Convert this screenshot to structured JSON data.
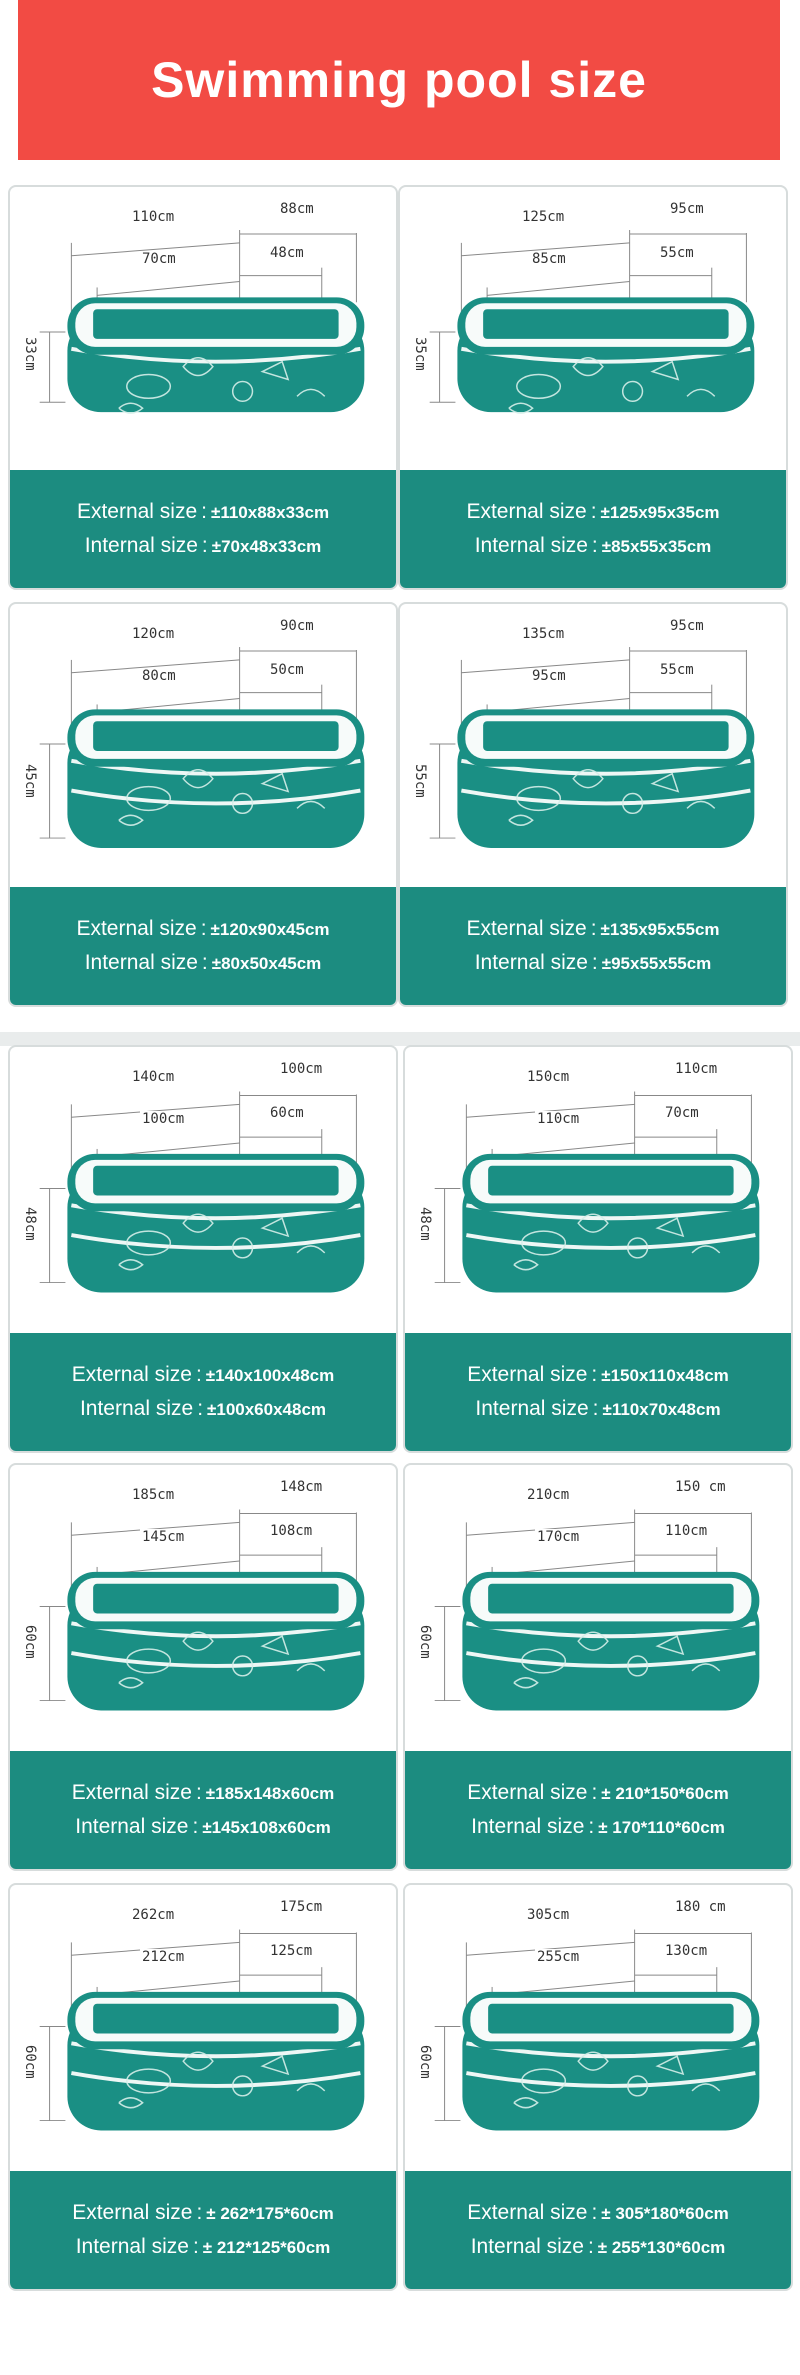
{
  "title": "Swimming pool size",
  "colors": {
    "banner": "#f24b44",
    "teal": "#1c8c80",
    "pool_water": "#1a8f84",
    "pool_white": "#f7fbfa"
  },
  "pools": [
    {
      "length": "110cm",
      "width": "88cm",
      "in_length": "70cm",
      "in_width": "48cm",
      "height": "33cm",
      "external_label": "External size",
      "internal_label": "Internal size",
      "external": "±110x88x33cm",
      "internal": "±70x48x33cm"
    },
    {
      "length": "125cm",
      "width": "95cm",
      "in_length": "85cm",
      "in_width": "55cm",
      "height": "35cm",
      "external_label": "External size",
      "internal_label": "Internal size",
      "external": "±125x95x35cm",
      "internal": "±85x55x35cm"
    },
    {
      "length": "120cm",
      "width": "90cm",
      "in_length": "80cm",
      "in_width": "50cm",
      "height": "45cm",
      "external_label": "External size",
      "internal_label": "Internal size",
      "external": "±120x90x45cm",
      "internal": "±80x50x45cm"
    },
    {
      "length": "135cm",
      "width": "95cm",
      "in_length": "95cm",
      "in_width": "55cm",
      "height": "55cm",
      "external_label": "External size",
      "internal_label": "Internal size",
      "external": "±135x95x55cm",
      "internal": "±95x55x55cm"
    },
    {
      "length": "140cm",
      "width": "100cm",
      "in_length": "100cm",
      "in_width": "60cm",
      "height": "48cm",
      "external_label": "External size",
      "internal_label": "Internal size",
      "external": "±140x100x48cm",
      "internal": "±100x60x48cm"
    },
    {
      "length": "150cm",
      "width": "110cm",
      "in_length": "110cm",
      "in_width": "70cm",
      "height": "48cm",
      "external_label": "External size",
      "internal_label": "Internal size",
      "external": "±150x110x48cm",
      "internal": "±110x70x48cm"
    },
    {
      "length": "185cm",
      "width": "148cm",
      "in_length": "145cm",
      "in_width": "108cm",
      "height": "60cm",
      "external_label": "External size",
      "internal_label": "Internal size",
      "external": "±185x148x60cm",
      "internal": "±145x108x60cm"
    },
    {
      "length": "210cm",
      "width": "150 cm",
      "in_length": "170cm",
      "in_width": "110cm",
      "height": "60cm",
      "external_label": "External size",
      "internal_label": "Internal size",
      "external": "± 210*150*60cm",
      "internal": "± 170*110*60cm"
    },
    {
      "length": "262cm",
      "width": "175cm",
      "in_length": "212cm",
      "in_width": "125cm",
      "height": "60cm",
      "external_label": "External size",
      "internal_label": "Internal size",
      "external": "± 262*175*60cm",
      "internal": "± 212*125*60cm"
    },
    {
      "length": "305cm",
      "width": "180 cm",
      "in_length": "255cm",
      "in_width": "130cm",
      "height": "60cm",
      "external_label": "External size",
      "internal_label": "Internal size",
      "external": "± 305*180*60cm",
      "internal": "± 255*130*60cm"
    }
  ]
}
